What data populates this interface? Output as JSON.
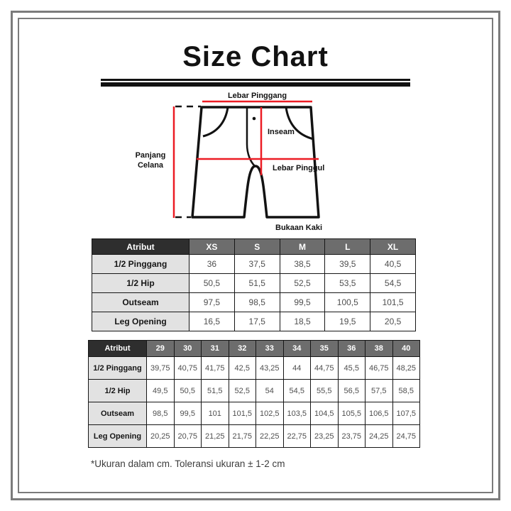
{
  "title": "Size Chart",
  "colors": {
    "measurement_line": "#ec1c24",
    "frame_gray": "#7b7b7b",
    "header_dark": "#2e2e2e",
    "header_gray": "#6d6d6d",
    "row_label_bg": "#e2e2e2",
    "outline_black": "#121212"
  },
  "diagram": {
    "labels": {
      "top": "Lebar Pinggang",
      "left_lines": [
        "Panjang",
        "Celana"
      ],
      "inseam": "Inseam",
      "hip": "Lebar Pinggul",
      "bottom": "Bukaan Kaki"
    }
  },
  "size_table_letters": {
    "header": [
      "Atribut",
      "XS",
      "S",
      "M",
      "L",
      "XL"
    ],
    "rows": [
      {
        "label": "1/2 Pinggang",
        "values": [
          "36",
          "37,5",
          "38,5",
          "39,5",
          "40,5"
        ]
      },
      {
        "label": "1/2 Hip",
        "values": [
          "50,5",
          "51,5",
          "52,5",
          "53,5",
          "54,5"
        ]
      },
      {
        "label": "Outseam",
        "values": [
          "97,5",
          "98,5",
          "99,5",
          "100,5",
          "101,5"
        ]
      },
      {
        "label": "Leg Opening",
        "values": [
          "16,5",
          "17,5",
          "18,5",
          "19,5",
          "20,5"
        ]
      }
    ]
  },
  "size_table_numbers": {
    "header": [
      "Atribut",
      "29",
      "30",
      "31",
      "32",
      "33",
      "34",
      "35",
      "36",
      "38",
      "40"
    ],
    "rows": [
      {
        "label": "1/2 Pinggang",
        "values": [
          "39,75",
          "40,75",
          "41,75",
          "42,5",
          "43,25",
          "44",
          "44,75",
          "45,5",
          "46,75",
          "48,25"
        ]
      },
      {
        "label": "1/2 Hip",
        "values": [
          "49,5",
          "50,5",
          "51,5",
          "52,5",
          "54",
          "54,5",
          "55,5",
          "56,5",
          "57,5",
          "58,5"
        ]
      },
      {
        "label": "Outseam",
        "values": [
          "98,5",
          "99,5",
          "101",
          "101,5",
          "102,5",
          "103,5",
          "104,5",
          "105,5",
          "106,5",
          "107,5"
        ]
      },
      {
        "label": "Leg Opening",
        "values": [
          "20,25",
          "20,75",
          "21,25",
          "21,75",
          "22,25",
          "22,75",
          "23,25",
          "23,75",
          "24,25",
          "24,75"
        ]
      }
    ]
  },
  "footnote": "*Ukuran dalam cm. Toleransi ukuran ± 1-2 cm"
}
